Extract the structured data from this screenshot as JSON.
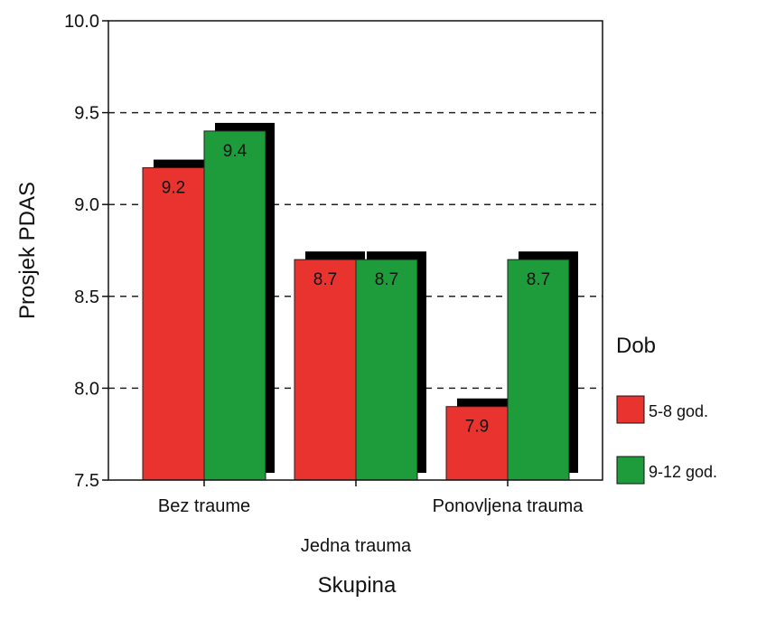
{
  "chart_data": {
    "type": "bar",
    "categories": [
      "Bez traume",
      "Jedna trauma",
      "Ponovljena trauma"
    ],
    "series": [
      {
        "name": "5-8 god.",
        "color": "#e8332e",
        "values": [
          9.2,
          8.7,
          7.9
        ],
        "labels": [
          "9.2",
          "8.7",
          "7.9"
        ]
      },
      {
        "name": "9-12 god.",
        "color": "#1e9c3c",
        "values": [
          9.4,
          8.7,
          8.7
        ],
        "labels": [
          "9.4",
          "8.7",
          "8.7"
        ]
      }
    ],
    "ylabel": "Prosjek PDAS",
    "xlabel": "Skupina",
    "legend_title": "Dob",
    "ylim": [
      7.5,
      10.0
    ],
    "yticks": [
      "7.5",
      "8.0",
      "8.5",
      "9.0",
      "9.5",
      "10.0"
    ],
    "grid": "dashed horizontal",
    "legend_position": "right",
    "shadow_color": "#000000"
  }
}
